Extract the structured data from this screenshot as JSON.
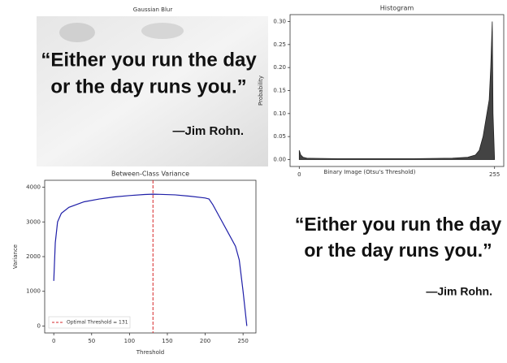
{
  "chart_data": [
    {
      "type": "area",
      "title": "Histogram",
      "ylabel": "Probability",
      "x": [
        0,
        2,
        5,
        10,
        50,
        100,
        150,
        200,
        220,
        230,
        235,
        240,
        245,
        248,
        250,
        252,
        253,
        255
      ],
      "series": [
        {
          "name": "Probability",
          "color": "#222222",
          "values": [
            0.02,
            0.01,
            0.005,
            0.003,
            0.002,
            0.002,
            0.002,
            0.003,
            0.005,
            0.01,
            0.02,
            0.05,
            0.1,
            0.13,
            0.2,
            0.3,
            0.1,
            0.0
          ]
        }
      ],
      "xlim": [
        -12,
        267
      ],
      "xticks": [
        0,
        255
      ],
      "ylim": [
        -0.015,
        0.315
      ],
      "yticks": [
        {
          "value": 0,
          "label": "0.00"
        },
        0.05,
        {
          "value": 0.1,
          "label": "0.10"
        },
        0.15,
        {
          "value": 0.2,
          "label": "0.20"
        },
        0.25,
        {
          "value": 0.3,
          "label": "0.30"
        }
      ]
    },
    {
      "type": "line",
      "title": "Between-Class Variance",
      "xlabel": "Threshold",
      "ylabel": "Variance",
      "x": [
        0,
        2,
        5,
        10,
        20,
        40,
        60,
        80,
        100,
        120,
        131,
        140,
        160,
        180,
        200,
        205,
        210,
        220,
        230,
        240,
        245,
        250,
        255
      ],
      "series": [
        {
          "name": "Variance",
          "color": "#1f1fa8",
          "values": [
            1300,
            2400,
            3000,
            3250,
            3420,
            3580,
            3660,
            3720,
            3760,
            3790,
            3800,
            3795,
            3780,
            3740,
            3690,
            3660,
            3500,
            3100,
            2700,
            2300,
            1900,
            1000,
            0
          ]
        }
      ],
      "threshold": {
        "value": 131,
        "name": "Optimal Threshold = 131",
        "color": "#d62728"
      },
      "legend": "lower left",
      "xlim": [
        -12,
        267
      ],
      "xticks": [
        0,
        50,
        100,
        150,
        200,
        250
      ],
      "ylim": [
        -200,
        4200
      ],
      "yticks": [
        0,
        1000,
        2000,
        3000,
        4000
      ]
    }
  ],
  "images": [
    {
      "title": "Gaussian Blur",
      "quote_lines": [
        "“Either you run the day",
        "or the day runs you.”"
      ],
      "author": "—Jim Rohn."
    },
    {
      "title": "Binary Image (Otsu's Threshold)",
      "quote_lines": [
        "“Either you run the day",
        "or the day runs you.”"
      ],
      "author": "—Jim Rohn."
    }
  ]
}
